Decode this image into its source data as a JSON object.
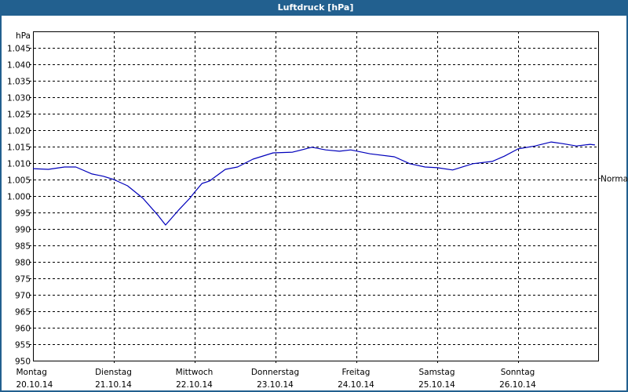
{
  "window": {
    "title": "Luftdruck [hPa]"
  },
  "colors": {
    "titlebar": "#22608f",
    "line": "#0000bb",
    "grid": "#000000"
  },
  "chart_data": {
    "type": "line",
    "title": "Luftdruck [hPa]",
    "xlabel": "",
    "ylabel": "hPa",
    "ylim": [
      950,
      1050
    ],
    "yticks": [
      "1.045",
      "1.040",
      "1.035",
      "1.030",
      "1.025",
      "1.020",
      "1.015",
      "1.010",
      "1.005",
      "1.000",
      "995",
      "990",
      "985",
      "980",
      "975",
      "970",
      "965",
      "960",
      "955",
      "950"
    ],
    "grid": true,
    "right_annotation": {
      "label": "Normal",
      "value": 1005.5
    },
    "categories": [
      {
        "day": "Montag",
        "date": "20.10.14"
      },
      {
        "day": "Dienstag",
        "date": "21.10.14"
      },
      {
        "day": "Mittwoch",
        "date": "22.10.14"
      },
      {
        "day": "Donnerstag",
        "date": "23.10.14"
      },
      {
        "day": "Freitag",
        "date": "24.10.14"
      },
      {
        "day": "Samstag",
        "date": "25.10.14"
      },
      {
        "day": "Sonntag",
        "date": "26.10.14"
      }
    ],
    "series": [
      {
        "name": "Luftdruck",
        "x_days": [
          0.0,
          0.19,
          0.39,
          0.53,
          0.73,
          0.87,
          1.0,
          1.17,
          1.36,
          1.55,
          1.64,
          1.8,
          1.94,
          2.0,
          2.09,
          2.18,
          2.38,
          2.53,
          2.72,
          2.97,
          3.21,
          3.45,
          3.62,
          3.79,
          3.93,
          4.17,
          4.47,
          4.66,
          4.85,
          5.0,
          5.19,
          5.44,
          5.68,
          5.83,
          6.0,
          6.21,
          6.41,
          6.55,
          6.72,
          6.89,
          6.95
        ],
        "values": [
          1008.3,
          1008.1,
          1008.8,
          1008.8,
          1006.7,
          1006.0,
          1005.0,
          1003.1,
          999.3,
          994.0,
          991.2,
          995.7,
          999.3,
          1001.2,
          1003.8,
          1004.5,
          1008.1,
          1008.8,
          1011.2,
          1013.1,
          1013.3,
          1014.8,
          1014.0,
          1013.6,
          1014.0,
          1012.8,
          1011.9,
          1009.8,
          1008.8,
          1008.6,
          1007.9,
          1009.8,
          1010.5,
          1012.1,
          1014.3,
          1015.2,
          1016.4,
          1015.9,
          1015.2,
          1015.7,
          1015.5
        ]
      }
    ]
  }
}
